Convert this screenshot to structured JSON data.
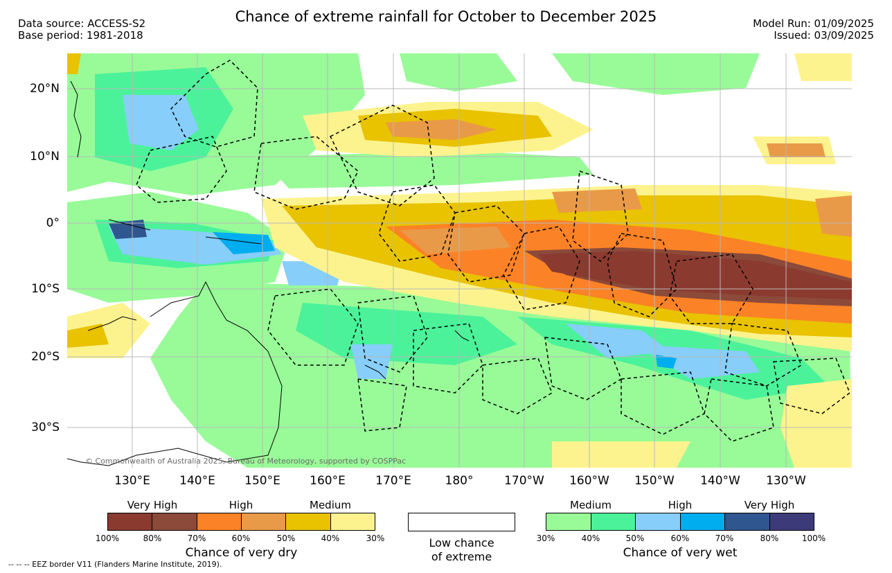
{
  "header": {
    "title": "Chance of extreme rainfall for October to December 2025",
    "data_source": "Data source: ACCESS-S2",
    "base_period": "Base period: 1981-2018",
    "model_run": "Model Run: 01/09/2025",
    "issued": "Issued: 03/09/2025"
  },
  "map": {
    "lat_labels": [
      "20°N",
      "10°N",
      "0°",
      "10°S",
      "20°S",
      "30°S"
    ],
    "lon_labels": [
      "130°E",
      "140°E",
      "150°E",
      "160°E",
      "170°E",
      "180°",
      "170°W",
      "160°W",
      "150°W",
      "140°W",
      "130°W"
    ],
    "credit": "© Commonwealth of Australia 2025, Bureau of Meteorology, supported by COSPPac"
  },
  "legend_dry": {
    "group_labels": [
      "Very High",
      "High",
      "Medium"
    ],
    "colors": [
      "#8b3a2f",
      "#8b4a3a",
      "#fb8226",
      "#e99a48",
      "#e9c200",
      "#fdf38e"
    ],
    "ticks": [
      "100%",
      "80%",
      "70%",
      "60%",
      "50%",
      "40%",
      "30%"
    ],
    "caption": "Chance of very dry"
  },
  "legend_low": {
    "line1": "Low chance",
    "line2": "of extreme"
  },
  "legend_wet": {
    "group_labels": [
      "Medium",
      "High",
      "Very High"
    ],
    "colors": [
      "#98fb98",
      "#4bf29a",
      "#87cefa",
      "#00adef",
      "#30568f",
      "#3d3a7a"
    ],
    "ticks": [
      "30%",
      "40%",
      "50%",
      "60%",
      "70%",
      "80%",
      "100%"
    ],
    "caption": "Chance of very wet"
  },
  "footnote": "--  --  -- EEZ border V11 (Flanders Marine Institute, 2019)."
}
